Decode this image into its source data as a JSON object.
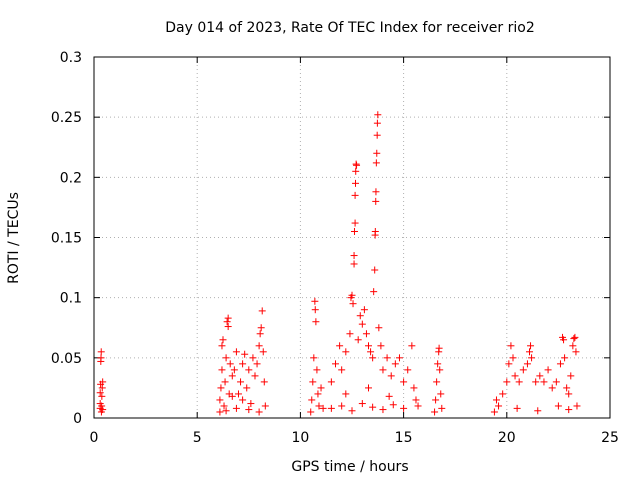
{
  "chart_data": {
    "type": "scatter",
    "title": "Day 014 of 2023, Rate Of TEC Index for receiver rio2",
    "xlabel": "GPS time / hours",
    "ylabel": "ROTI / TECUs",
    "xlim": [
      0,
      25
    ],
    "ylim": [
      0,
      0.3
    ],
    "x_ticks": [
      "0",
      "5",
      "10",
      "15",
      "20",
      "25"
    ],
    "y_ticks": [
      "0",
      "0.05",
      "0.1",
      "0.15",
      "0.2",
      "0.25",
      "0.3"
    ],
    "grid": true,
    "marker": "plus",
    "color": "#ff0000",
    "series": [
      {
        "points": [
          [
            0.3,
            0.008
          ],
          [
            0.3,
            0.012
          ],
          [
            0.3,
            0.021
          ],
          [
            0.32,
            0.028
          ],
          [
            0.33,
            0.047
          ],
          [
            0.34,
            0.05
          ],
          [
            0.35,
            0.055
          ],
          [
            0.36,
            0.005
          ],
          [
            0.37,
            0.01
          ],
          [
            0.38,
            0.018
          ],
          [
            0.4,
            0.025
          ],
          [
            0.42,
            0.03
          ],
          [
            0.42,
            0.007
          ],
          [
            6.1,
            0.005
          ],
          [
            6.1,
            0.015
          ],
          [
            6.15,
            0.025
          ],
          [
            6.2,
            0.04
          ],
          [
            6.2,
            0.06
          ],
          [
            6.25,
            0.065
          ],
          [
            6.3,
            0.01
          ],
          [
            6.35,
            0.03
          ],
          [
            6.4,
            0.05
          ],
          [
            6.45,
            0.08
          ],
          [
            6.5,
            0.083
          ],
          [
            6.5,
            0.076
          ],
          [
            6.55,
            0.02
          ],
          [
            6.6,
            0.045
          ],
          [
            6.7,
            0.035
          ],
          [
            6.8,
            0.04
          ],
          [
            6.9,
            0.055
          ],
          [
            7.0,
            0.02
          ],
          [
            7.1,
            0.03
          ],
          [
            7.2,
            0.045
          ],
          [
            7.3,
            0.053
          ],
          [
            7.4,
            0.025
          ],
          [
            7.5,
            0.04
          ],
          [
            7.6,
            0.012
          ],
          [
            7.7,
            0.05
          ],
          [
            7.8,
            0.035
          ],
          [
            7.9,
            0.045
          ],
          [
            8.0,
            0.06
          ],
          [
            8.05,
            0.07
          ],
          [
            8.1,
            0.075
          ],
          [
            8.15,
            0.089
          ],
          [
            8.2,
            0.055
          ],
          [
            8.25,
            0.03
          ],
          [
            8.3,
            0.01
          ],
          [
            6.4,
            0.006
          ],
          [
            6.9,
            0.008
          ],
          [
            7.5,
            0.007
          ],
          [
            8.0,
            0.005
          ],
          [
            7.2,
            0.015
          ],
          [
            6.7,
            0.018
          ],
          [
            10.5,
            0.005
          ],
          [
            10.55,
            0.015
          ],
          [
            10.6,
            0.03
          ],
          [
            10.65,
            0.05
          ],
          [
            10.7,
            0.097
          ],
          [
            10.72,
            0.09
          ],
          [
            10.75,
            0.08
          ],
          [
            10.8,
            0.04
          ],
          [
            10.85,
            0.02
          ],
          [
            10.9,
            0.01
          ],
          [
            11.0,
            0.025
          ],
          [
            11.1,
            0.008
          ],
          [
            11.5,
            0.03
          ],
          [
            11.7,
            0.045
          ],
          [
            11.9,
            0.06
          ],
          [
            12.0,
            0.04
          ],
          [
            12.2,
            0.055
          ],
          [
            12.4,
            0.07
          ],
          [
            12.45,
            0.1
          ],
          [
            12.5,
            0.102
          ],
          [
            12.55,
            0.095
          ],
          [
            12.6,
            0.128
          ],
          [
            12.6,
            0.135
          ],
          [
            12.62,
            0.155
          ],
          [
            12.65,
            0.162
          ],
          [
            12.65,
            0.185
          ],
          [
            12.67,
            0.195
          ],
          [
            12.68,
            0.205
          ],
          [
            12.7,
            0.211
          ],
          [
            12.72,
            0.21
          ],
          [
            12.8,
            0.065
          ],
          [
            12.9,
            0.085
          ],
          [
            13.0,
            0.078
          ],
          [
            13.1,
            0.09
          ],
          [
            13.2,
            0.07
          ],
          [
            13.3,
            0.06
          ],
          [
            13.4,
            0.055
          ],
          [
            13.5,
            0.05
          ],
          [
            13.55,
            0.105
          ],
          [
            13.6,
            0.123
          ],
          [
            13.62,
            0.152
          ],
          [
            13.63,
            0.155
          ],
          [
            13.65,
            0.18
          ],
          [
            13.66,
            0.188
          ],
          [
            13.68,
            0.212
          ],
          [
            13.7,
            0.22
          ],
          [
            13.72,
            0.235
          ],
          [
            13.73,
            0.245
          ],
          [
            13.75,
            0.252
          ],
          [
            13.8,
            0.075
          ],
          [
            13.9,
            0.06
          ],
          [
            14.0,
            0.04
          ],
          [
            14.2,
            0.05
          ],
          [
            14.4,
            0.035
          ],
          [
            14.6,
            0.045
          ],
          [
            14.8,
            0.05
          ],
          [
            15.0,
            0.03
          ],
          [
            15.2,
            0.04
          ],
          [
            15.4,
            0.06
          ],
          [
            15.5,
            0.025
          ],
          [
            15.6,
            0.015
          ],
          [
            15.7,
            0.01
          ],
          [
            11.5,
            0.008
          ],
          [
            12.0,
            0.01
          ],
          [
            12.5,
            0.006
          ],
          [
            13.0,
            0.012
          ],
          [
            13.5,
            0.009
          ],
          [
            14.0,
            0.007
          ],
          [
            14.5,
            0.011
          ],
          [
            15.0,
            0.008
          ],
          [
            12.2,
            0.02
          ],
          [
            13.3,
            0.025
          ],
          [
            14.3,
            0.018
          ],
          [
            16.5,
            0.005
          ],
          [
            16.55,
            0.015
          ],
          [
            16.6,
            0.03
          ],
          [
            16.65,
            0.045
          ],
          [
            16.7,
            0.055
          ],
          [
            16.72,
            0.058
          ],
          [
            16.75,
            0.04
          ],
          [
            16.8,
            0.02
          ],
          [
            16.85,
            0.008
          ],
          [
            19.4,
            0.005
          ],
          [
            19.5,
            0.015
          ],
          [
            19.6,
            0.01
          ],
          [
            19.8,
            0.02
          ],
          [
            20.0,
            0.03
          ],
          [
            20.1,
            0.045
          ],
          [
            20.2,
            0.06
          ],
          [
            20.3,
            0.05
          ],
          [
            20.4,
            0.035
          ],
          [
            20.6,
            0.03
          ],
          [
            20.8,
            0.04
          ],
          [
            21.0,
            0.045
          ],
          [
            21.1,
            0.055
          ],
          [
            21.15,
            0.06
          ],
          [
            21.2,
            0.05
          ],
          [
            21.4,
            0.03
          ],
          [
            21.6,
            0.035
          ],
          [
            21.8,
            0.03
          ],
          [
            22.0,
            0.04
          ],
          [
            22.2,
            0.025
          ],
          [
            22.4,
            0.03
          ],
          [
            22.6,
            0.045
          ],
          [
            22.7,
            0.067
          ],
          [
            22.75,
            0.065
          ],
          [
            22.8,
            0.05
          ],
          [
            22.9,
            0.025
          ],
          [
            23.0,
            0.02
          ],
          [
            23.1,
            0.035
          ],
          [
            23.2,
            0.06
          ],
          [
            23.25,
            0.066
          ],
          [
            23.3,
            0.067
          ],
          [
            23.35,
            0.055
          ],
          [
            23.4,
            0.01
          ],
          [
            20.5,
            0.008
          ],
          [
            21.5,
            0.006
          ],
          [
            22.5,
            0.01
          ],
          [
            23.0,
            0.007
          ]
        ]
      }
    ]
  }
}
